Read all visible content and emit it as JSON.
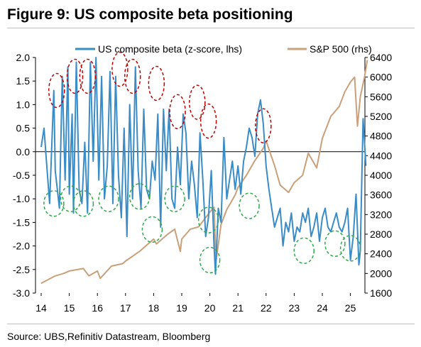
{
  "title": "Figure 9: US composite beta positioning",
  "source": "Source: UBS,Refinitiv Datastream, Bloomberg",
  "colors": {
    "beta": "#3a8cc7",
    "sp500": "#c9a07a",
    "red_circle": "#c00000",
    "green_circle": "#2eaa4a"
  },
  "chart_data": {
    "type": "line",
    "title": "Figure 9: US composite beta positioning",
    "x_ticks": [
      "14",
      "15",
      "16",
      "17",
      "18",
      "19",
      "20",
      "21",
      "22",
      "23",
      "24",
      "25"
    ],
    "xlim": [
      2014,
      2025.75
    ],
    "left_axis": {
      "ticks": [
        "2.0",
        "1.5",
        "1.0",
        "0.5",
        "0.0",
        "-0.5",
        "-1.0",
        "-1.5",
        "-2.0",
        "-2.5",
        "-3.0"
      ],
      "ylim": [
        -3.0,
        2.0
      ]
    },
    "right_axis": {
      "ticks": [
        "6400",
        "6000",
        "5600",
        "5200",
        "4800",
        "4400",
        "4000",
        "3600",
        "3200",
        "2800",
        "2400",
        "2000",
        "1600"
      ],
      "ylim": [
        1600,
        6400
      ]
    },
    "grid": false,
    "legend_position": "top",
    "series": [
      {
        "name": "US composite beta (z-score, lhs)",
        "axis": "left",
        "x": [
          2014.0,
          2014.1,
          2014.2,
          2014.3,
          2014.45,
          2014.5,
          2014.65,
          2014.75,
          2014.85,
          2014.95,
          2015.0,
          2015.1,
          2015.15,
          2015.25,
          2015.35,
          2015.45,
          2015.55,
          2015.65,
          2015.75,
          2015.85,
          2015.95,
          2016.05,
          2016.15,
          2016.25,
          2016.35,
          2016.45,
          2016.55,
          2016.65,
          2016.75,
          2016.85,
          2016.95,
          2017.05,
          2017.15,
          2017.25,
          2017.35,
          2017.45,
          2017.55,
          2017.65,
          2017.75,
          2017.85,
          2017.95,
          2018.05,
          2018.15,
          2018.25,
          2018.35,
          2018.45,
          2018.55,
          2018.65,
          2018.75,
          2018.85,
          2018.95,
          2019.05,
          2019.15,
          2019.25,
          2019.35,
          2019.45,
          2019.55,
          2019.65,
          2019.75,
          2019.85,
          2019.95,
          2020.05,
          2020.15,
          2020.2,
          2020.3,
          2020.4,
          2020.5,
          2020.6,
          2020.7,
          2020.8,
          2020.9,
          2021.0,
          2021.1,
          2021.2,
          2021.3,
          2021.4,
          2021.5,
          2021.6,
          2021.7,
          2021.8,
          2021.9,
          2022.0,
          2022.1,
          2022.2,
          2022.3,
          2022.4,
          2022.5,
          2022.6,
          2022.7,
          2022.8,
          2022.9,
          2023.0,
          2023.1,
          2023.2,
          2023.3,
          2023.4,
          2023.5,
          2023.6,
          2023.7,
          2023.8,
          2023.9,
          2024.0,
          2024.1,
          2024.2,
          2024.3,
          2024.4,
          2024.5,
          2024.6,
          2024.7,
          2024.8,
          2024.9,
          2025.0,
          2025.1,
          2025.2,
          2025.3,
          2025.35,
          2025.45,
          2025.55
        ],
        "values": [
          0.1,
          0.5,
          -0.3,
          -1.1,
          1.3,
          -0.4,
          -1.2,
          1.6,
          -0.6,
          1.8,
          -0.9,
          0.8,
          -1.3,
          1.9,
          -0.8,
          -1.1,
          0.2,
          -1.3,
          1.9,
          -0.2,
          2.0,
          -0.6,
          1.6,
          -1.0,
          -0.3,
          1.7,
          -1.1,
          1.6,
          -0.5,
          -1.4,
          0.5,
          -1.8,
          1.0,
          -1.0,
          1.8,
          -0.4,
          -1.2,
          0.9,
          -0.8,
          -1.0,
          -0.2,
          -0.6,
          0.8,
          -1.6,
          0.9,
          -0.4,
          0.9,
          -1.0,
          -1.2,
          0.1,
          -0.7,
          0.8,
          0.4,
          -1.0,
          -0.2,
          -0.7,
          -1.4,
          0.4,
          -0.6,
          -1.8,
          -1.4,
          -0.4,
          -2.0,
          -2.6,
          -1.2,
          -1.5,
          0.3,
          -1.0,
          -0.6,
          -0.2,
          -0.8,
          -0.3,
          -0.9,
          -0.2,
          0.1,
          0.5,
          0.3,
          -0.1,
          0.8,
          1.1,
          0.6,
          -0.3,
          -0.8,
          -1.2,
          -1.6,
          -1.4,
          -1.2,
          -2.0,
          -1.5,
          -1.7,
          -1.3,
          -1.9,
          -1.6,
          -1.7,
          -1.3,
          -1.5,
          -1.2,
          -1.8,
          -1.6,
          -1.3,
          -1.9,
          -1.4,
          -1.2,
          -1.6,
          -1.7,
          -1.5,
          -1.3,
          -1.6,
          -1.7,
          -1.5,
          -1.2,
          -2.3,
          -1.8,
          -0.9,
          -2.4,
          -2.1,
          0.7,
          -0.3
        ]
      },
      {
        "name": "S&P 500 (rhs)",
        "axis": "right",
        "x": [
          2014.0,
          2014.5,
          2014.8,
          2015.0,
          2015.5,
          2015.7,
          2016.0,
          2016.1,
          2016.5,
          2016.9,
          2017.0,
          2017.5,
          2018.0,
          2018.1,
          2018.5,
          2018.75,
          2018.95,
          2019.0,
          2019.3,
          2019.6,
          2020.0,
          2020.15,
          2020.22,
          2020.4,
          2020.6,
          2020.9,
          2021.0,
          2021.3,
          2021.6,
          2021.9,
          2022.0,
          2022.3,
          2022.5,
          2022.8,
          2023.0,
          2023.3,
          2023.5,
          2023.8,
          2024.0,
          2024.3,
          2024.6,
          2024.8,
          2025.0,
          2025.15,
          2025.25,
          2025.35,
          2025.5,
          2025.6
        ],
        "values": [
          1800,
          1950,
          2000,
          2050,
          2100,
          1950,
          2050,
          1900,
          2150,
          2200,
          2250,
          2450,
          2700,
          2600,
          2800,
          2900,
          2450,
          2700,
          2900,
          2950,
          3250,
          3350,
          2250,
          3000,
          3300,
          3600,
          3750,
          4000,
          4300,
          4550,
          4700,
          4200,
          3800,
          3650,
          3850,
          4000,
          4450,
          4150,
          4750,
          5200,
          5400,
          5700,
          5900,
          6000,
          5000,
          5600,
          6000,
          6350
        ]
      }
    ],
    "annotations": {
      "red_circles": [
        [
          2014.55,
          1.3
        ],
        [
          2015.2,
          1.6
        ],
        [
          2015.65,
          1.6
        ],
        [
          2016.8,
          1.75
        ],
        [
          2017.25,
          1.6
        ],
        [
          2018.1,
          1.45
        ],
        [
          2018.85,
          0.85
        ],
        [
          2019.55,
          1.05
        ],
        [
          2019.95,
          0.65
        ],
        [
          2021.9,
          0.55
        ]
      ],
      "green_circles": [
        [
          2014.45,
          -1.1
        ],
        [
          2015.05,
          -1.0
        ],
        [
          2015.5,
          -1.1
        ],
        [
          2016.4,
          -1.0
        ],
        [
          2017.5,
          -0.95
        ],
        [
          2017.95,
          -1.65
        ],
        [
          2018.75,
          -1.0
        ],
        [
          2019.95,
          -1.45
        ],
        [
          2020.0,
          -2.3
        ],
        [
          2021.4,
          -1.15
        ],
        [
          2023.35,
          -2.1
        ],
        [
          2024.45,
          -1.95
        ],
        [
          2025.0,
          -2.05
        ]
      ]
    }
  }
}
